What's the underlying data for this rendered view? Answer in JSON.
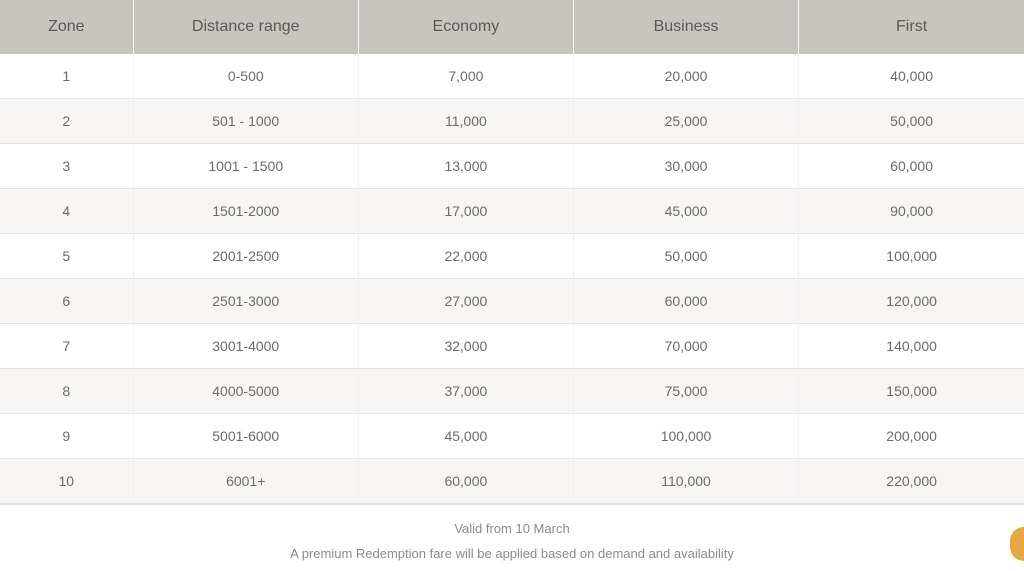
{
  "table": {
    "type": "table",
    "columns": [
      {
        "key": "zone",
        "label": "Zone",
        "widthPct": 13
      },
      {
        "key": "distance",
        "label": "Distance range",
        "widthPct": 22
      },
      {
        "key": "economy",
        "label": "Economy",
        "widthPct": 21
      },
      {
        "key": "business",
        "label": "Business",
        "widthPct": 22
      },
      {
        "key": "first",
        "label": "First",
        "widthPct": 22
      }
    ],
    "rows": [
      {
        "zone": "1",
        "distance": "0-500",
        "economy": "7,000",
        "business": "20,000",
        "first": "40,000"
      },
      {
        "zone": "2",
        "distance": "501 - 1000",
        "economy": "11,000",
        "business": "25,000",
        "first": "50,000"
      },
      {
        "zone": "3",
        "distance": "1001 - 1500",
        "economy": "13,000",
        "business": "30,000",
        "first": "60,000"
      },
      {
        "zone": "4",
        "distance": "1501-2000",
        "economy": "17,000",
        "business": "45,000",
        "first": "90,000"
      },
      {
        "zone": "5",
        "distance": "2001-2500",
        "economy": "22,000",
        "business": "50,000",
        "first": "100,000"
      },
      {
        "zone": "6",
        "distance": "2501-3000",
        "economy": "27,000",
        "business": "60,000",
        "first": "120,000"
      },
      {
        "zone": "7",
        "distance": "3001-4000",
        "economy": "32,000",
        "business": "70,000",
        "first": "140,000"
      },
      {
        "zone": "8",
        "distance": "4000-5000",
        "economy": "37,000",
        "business": "75,000",
        "first": "150,000"
      },
      {
        "zone": "9",
        "distance": "5001-6000",
        "economy": "45,000",
        "business": "100,000",
        "first": "200,000"
      },
      {
        "zone": "10",
        "distance": "6001+",
        "economy": "60,000",
        "business": "110,000",
        "first": "220,000"
      }
    ],
    "header_bg": "#c8c4c0",
    "header_text_color": "#5c5a58",
    "header_fontsize": 16,
    "row_odd_bg": "#ffffff",
    "row_even_bg": "#f7f6f5",
    "cell_text_color": "#6b6b6b",
    "cell_fontsize": 14,
    "border_color": "#e5e5e5"
  },
  "footer": {
    "line1": "Valid from 10 March",
    "line2": "A premium Redemption fare will be applied based on demand and availability",
    "text_color": "#8a8a8a",
    "fontsize": 13
  },
  "badge_color": "#e6a843"
}
